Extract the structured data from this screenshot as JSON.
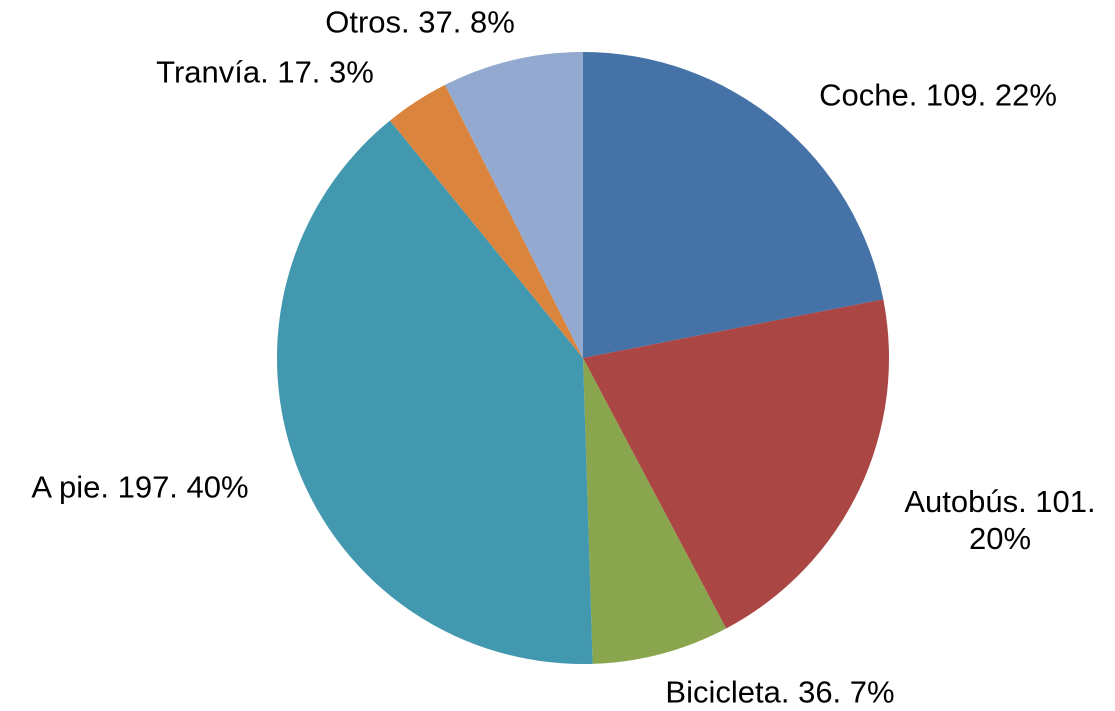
{
  "chart_data": {
    "type": "pie",
    "values": [
      109,
      101,
      36,
      197,
      17,
      37
    ],
    "value_labels": [
      "Coche. 109. 22%",
      "Autobús. 101. 20%",
      "Bicicleta. 36. 7%",
      "A pie. 197. 40%",
      "Tranvía. 17. 3%",
      "Otros. 37. 8%"
    ],
    "colors": [
      "#4572a7",
      "#aa4643",
      "#89a54e",
      "#4198af",
      "#db843d",
      "#93a9cf"
    ]
  }
}
